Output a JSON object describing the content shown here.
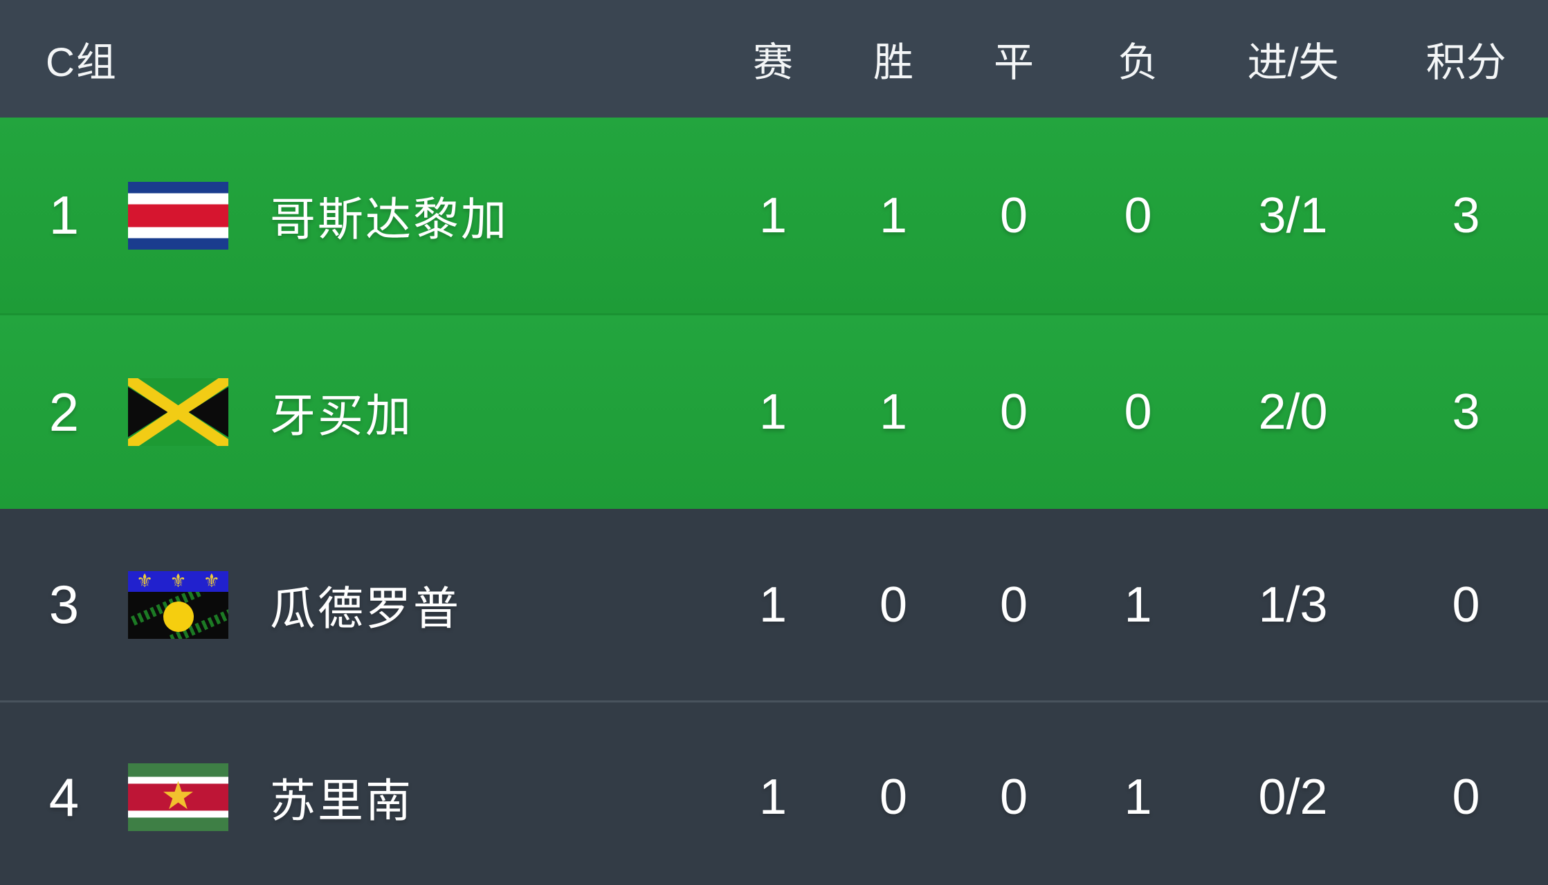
{
  "table": {
    "group_label": "C组",
    "columns": [
      "赛",
      "胜",
      "平",
      "负",
      "进/失",
      "积分"
    ],
    "rows": [
      {
        "rank": "1",
        "team": "哥斯达黎加",
        "flag": "costa-rica",
        "stats": [
          "1",
          "1",
          "0",
          "0",
          "3/1",
          "3"
        ],
        "highlighted": true
      },
      {
        "rank": "2",
        "team": "牙买加",
        "flag": "jamaica",
        "stats": [
          "1",
          "1",
          "0",
          "0",
          "2/0",
          "3"
        ],
        "highlighted": true
      },
      {
        "rank": "3",
        "team": "瓜德罗普",
        "flag": "guadeloupe",
        "stats": [
          "1",
          "0",
          "0",
          "1",
          "1/3",
          "0"
        ],
        "highlighted": false
      },
      {
        "rank": "4",
        "team": "苏里南",
        "flag": "suriname",
        "stats": [
          "1",
          "0",
          "0",
          "1",
          "0/2",
          "0"
        ],
        "highlighted": false
      }
    ],
    "colors": {
      "header_bg": "#3A4551",
      "highlight_row": "#20A03A",
      "dark_row": "#333C46",
      "text": "#FFFFFF"
    }
  },
  "icons": {
    "fleur_de_lis": "⚜",
    "star": "★"
  }
}
